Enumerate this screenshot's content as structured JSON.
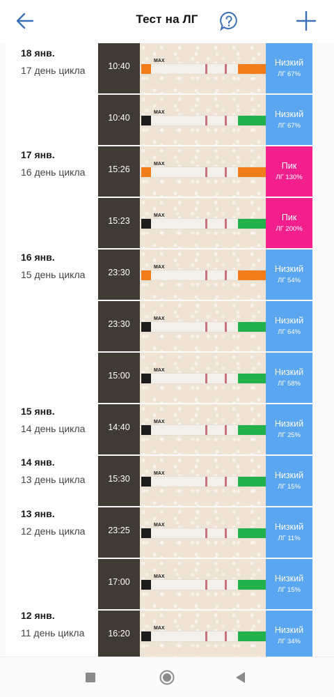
{
  "header": {
    "title": "Тест на ЛГ"
  },
  "days": [
    {
      "date": "18 янв.",
      "cycle": "17 день цикла"
    },
    {
      "date": "17 янв.",
      "cycle": "16 день цикла"
    },
    {
      "date": "16 янв.",
      "cycle": "15 день цикла"
    },
    {
      "date": "15 янв.",
      "cycle": "14 день цикла"
    },
    {
      "date": "14 янв.",
      "cycle": "13 день цикла"
    },
    {
      "date": "13 янв.",
      "cycle": "12 день цикла"
    },
    {
      "date": "12 янв.",
      "cycle": "11 день цикла"
    }
  ],
  "tests": [
    {
      "time": "10:40",
      "level": "Низкий",
      "percent": "ЛГ 67%",
      "status": "low"
    },
    {
      "time": "10:40",
      "level": "Низкий",
      "percent": "ЛГ 67%",
      "status": "low"
    },
    {
      "time": "15:26",
      "level": "Пик",
      "percent": "ЛГ 130%",
      "status": "peak"
    },
    {
      "time": "15:23",
      "level": "Пик",
      "percent": "ЛГ 200%",
      "status": "peak"
    },
    {
      "time": "23:30",
      "level": "Низкий",
      "percent": "ЛГ 54%",
      "status": "low"
    },
    {
      "time": "23:30",
      "level": "Низкий",
      "percent": "ЛГ 64%",
      "status": "low"
    },
    {
      "time": "15:00",
      "level": "Низкий",
      "percent": "ЛГ 58%",
      "status": "low"
    },
    {
      "time": "14:40",
      "level": "Низкий",
      "percent": "ЛГ 25%",
      "status": "low"
    },
    {
      "time": "15:30",
      "level": "Низкий",
      "percent": "ЛГ 15%",
      "status": "low"
    },
    {
      "time": "23:25",
      "level": "Низкий",
      "percent": "ЛГ 11%",
      "status": "low"
    },
    {
      "time": "17:00",
      "level": "Низкий",
      "percent": "ЛГ 15%",
      "status": "low"
    },
    {
      "time": "16:20",
      "level": "Низкий",
      "percent": "ЛГ 34%",
      "status": "low"
    }
  ],
  "strip_mark": "MAX",
  "colors": {
    "low": "#5aa6f0",
    "peak": "#f21f8c",
    "accent": "#3b6fb6",
    "strip_green": "#22b14c",
    "strip_orange": "#f07d1a"
  },
  "icons": {
    "back": "arrow-left-icon",
    "help": "question-bubble-icon",
    "add": "plus-icon",
    "nav_recent": "square-icon",
    "nav_home": "circle-icon",
    "nav_back": "triangle-left-icon"
  }
}
